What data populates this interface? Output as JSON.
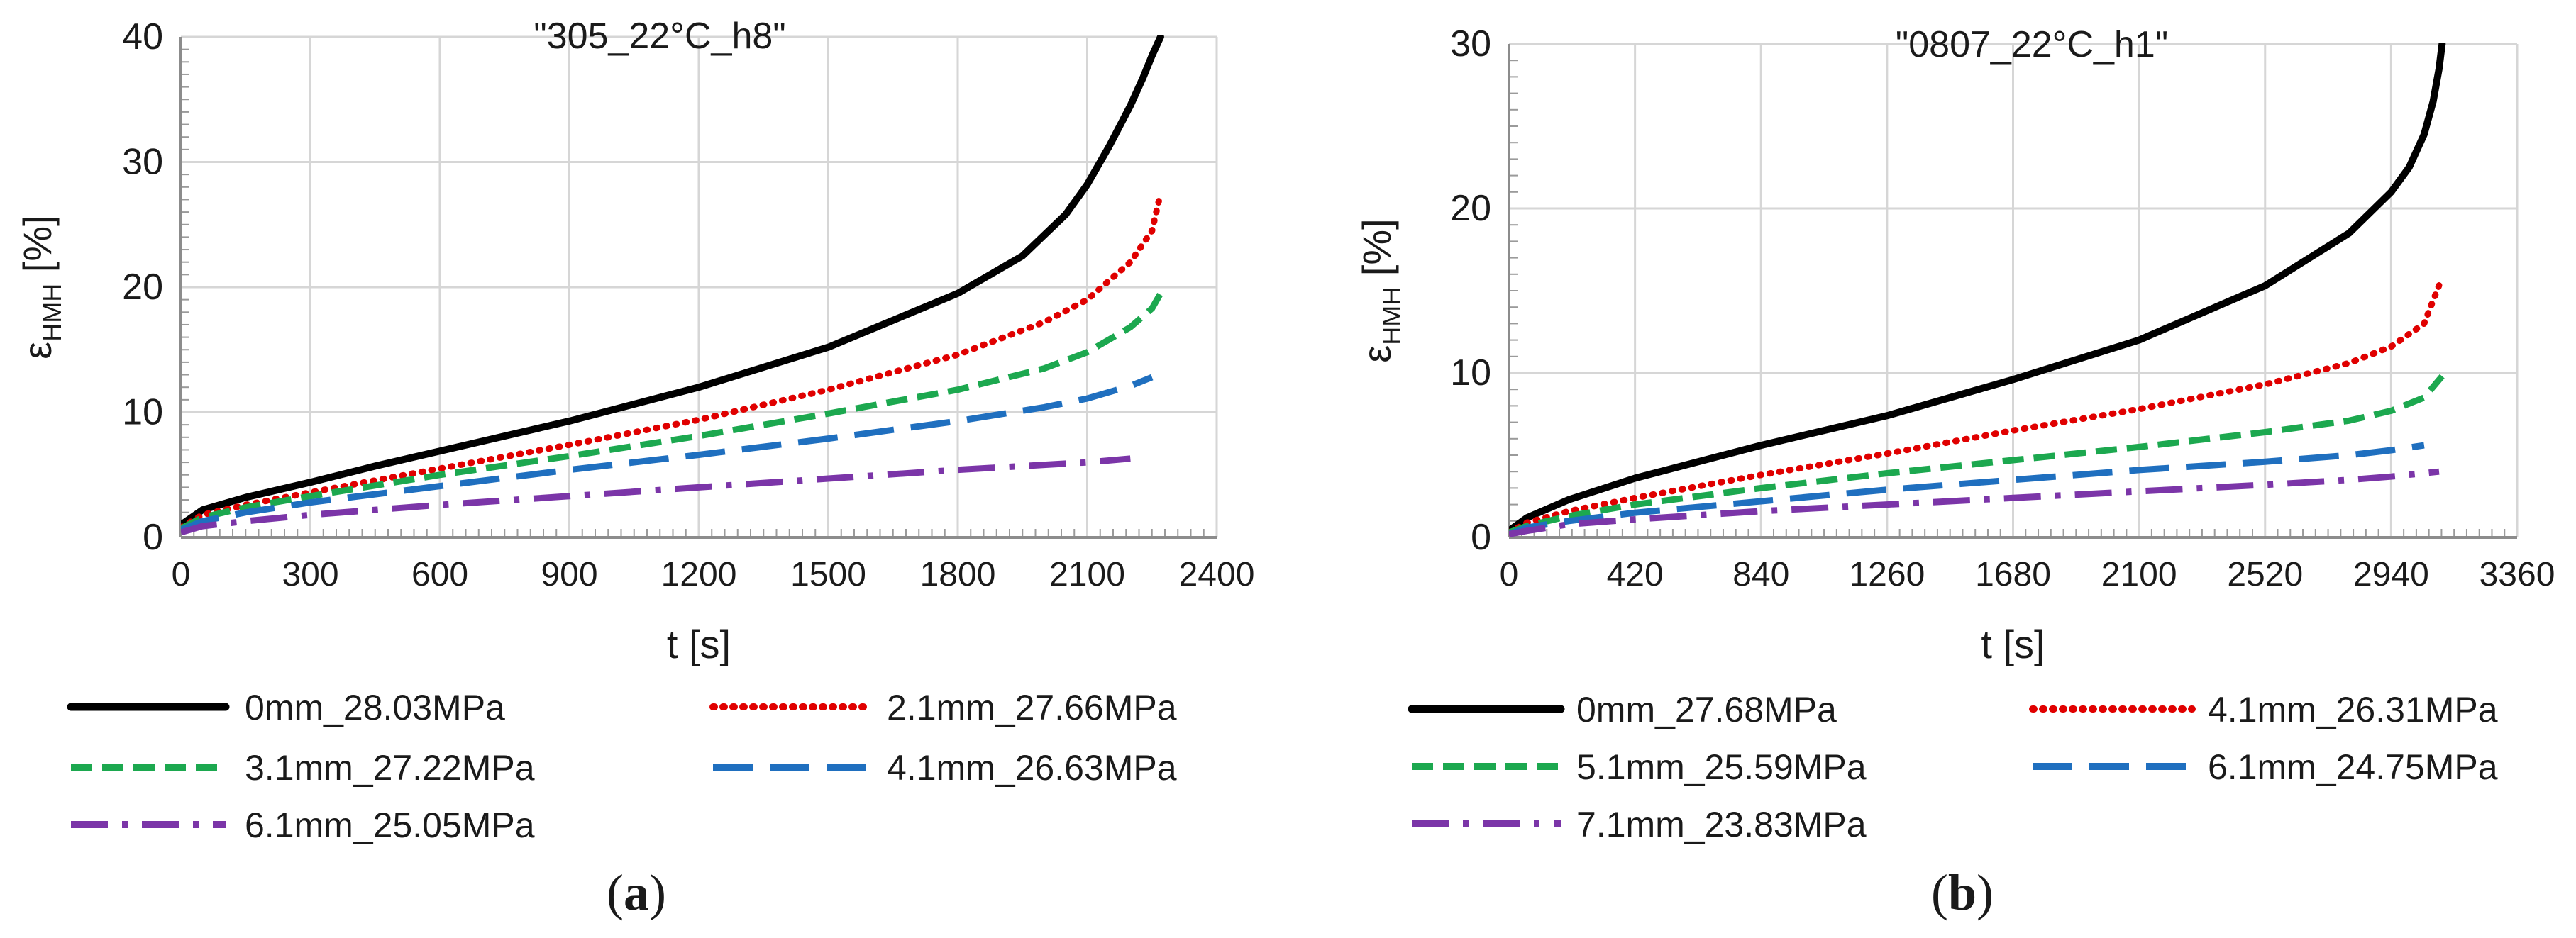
{
  "chart_data": [
    {
      "type": "line",
      "title": "\"305_22°C_h8\"",
      "panel_label": "a",
      "xlabel": "t [s]",
      "ylabel": {
        "main": "ε",
        "sub": "HMH",
        "suffix": " [%]"
      },
      "xlim": [
        0,
        2400
      ],
      "ylim": [
        0,
        40
      ],
      "x_ticks": [
        0,
        300,
        600,
        900,
        1200,
        1500,
        1800,
        2100,
        2400
      ],
      "y_ticks": [
        0,
        10,
        20,
        30,
        40
      ],
      "grid": true,
      "legend_position": "bottom",
      "series": [
        {
          "name": "0mm_28.03MPa",
          "color": "#000000",
          "style": "solid",
          "x": [
            0,
            50,
            150,
            300,
            450,
            600,
            900,
            1200,
            1500,
            1800,
            1950,
            2050,
            2100,
            2150,
            2200,
            2230,
            2250,
            2270
          ],
          "y": [
            1.0,
            2.2,
            3.2,
            4.4,
            5.7,
            6.9,
            9.3,
            12.0,
            15.2,
            19.5,
            22.5,
            25.8,
            28.2,
            31.2,
            34.5,
            36.8,
            38.5,
            40.0
          ]
        },
        {
          "name": "2.1mm_27.66MPa",
          "color": "#e00000",
          "style": "dotted",
          "x": [
            0,
            50,
            150,
            300,
            600,
            900,
            1200,
            1500,
            1800,
            2000,
            2100,
            2200,
            2250,
            2270
          ],
          "y": [
            0.8,
            1.8,
            2.6,
            3.6,
            5.5,
            7.4,
            9.4,
            11.8,
            14.6,
            17.2,
            19.0,
            22.0,
            24.5,
            27.5
          ]
        },
        {
          "name": "3.1mm_27.22MPa",
          "color": "#1ca84f",
          "style": "dash",
          "x": [
            0,
            50,
            150,
            300,
            600,
            900,
            1200,
            1500,
            1800,
            2000,
            2100,
            2200,
            2250,
            2270
          ],
          "y": [
            0.7,
            1.6,
            2.4,
            3.3,
            5.0,
            6.5,
            8.1,
            9.9,
            11.8,
            13.5,
            14.8,
            16.8,
            18.3,
            19.5
          ]
        },
        {
          "name": "4.1mm_26.63MPa",
          "color": "#1f6fbf",
          "style": "longdash",
          "x": [
            0,
            50,
            150,
            300,
            600,
            900,
            1200,
            1500,
            1800,
            2000,
            2100,
            2200,
            2250
          ],
          "y": [
            0.6,
            1.3,
            2.0,
            2.8,
            4.1,
            5.4,
            6.6,
            7.9,
            9.3,
            10.4,
            11.1,
            12.1,
            12.8
          ]
        },
        {
          "name": "6.1mm_25.05MPa",
          "color": "#7b35a8",
          "style": "dashdot",
          "x": [
            0,
            50,
            150,
            300,
            600,
            900,
            1200,
            1500,
            1800,
            2000,
            2100,
            2200
          ],
          "y": [
            0.4,
            0.9,
            1.3,
            1.8,
            2.6,
            3.3,
            4.0,
            4.7,
            5.4,
            5.8,
            6.0,
            6.3
          ]
        }
      ]
    },
    {
      "type": "line",
      "title": "\"0807_22°C_h1\"",
      "panel_label": "b",
      "xlabel": "t [s]",
      "ylabel": {
        "main": "ε",
        "sub": "HMH",
        "suffix": " [%]"
      },
      "xlim": [
        0,
        3360
      ],
      "ylim": [
        0,
        30
      ],
      "x_ticks": [
        0,
        420,
        840,
        1260,
        1680,
        2100,
        2520,
        2940,
        3360
      ],
      "y_ticks": [
        0,
        10,
        20,
        30
      ],
      "grid": true,
      "legend_position": "bottom",
      "series": [
        {
          "name": "0mm_27.68MPa",
          "color": "#000000",
          "style": "solid",
          "x": [
            0,
            60,
            200,
            420,
            840,
            1260,
            1680,
            2100,
            2520,
            2800,
            2940,
            3000,
            3050,
            3080,
            3100,
            3110
          ],
          "y": [
            0.4,
            1.2,
            2.3,
            3.6,
            5.6,
            7.4,
            9.6,
            12.0,
            15.3,
            18.5,
            21.0,
            22.5,
            24.5,
            26.5,
            28.5,
            30.0
          ]
        },
        {
          "name": "4.1mm_26.31MPa",
          "color": "#e00000",
          "style": "dotted",
          "x": [
            0,
            60,
            200,
            420,
            840,
            1260,
            1680,
            2100,
            2520,
            2800,
            2940,
            3050,
            3110
          ],
          "y": [
            0.3,
            0.9,
            1.6,
            2.4,
            3.8,
            5.1,
            6.5,
            7.8,
            9.3,
            10.6,
            11.6,
            13.0,
            15.8
          ]
        },
        {
          "name": "5.1mm_25.59MPa",
          "color": "#1ca84f",
          "style": "dash",
          "x": [
            0,
            60,
            200,
            420,
            840,
            1260,
            1680,
            2100,
            2520,
            2800,
            2940,
            3050,
            3110
          ],
          "y": [
            0.3,
            0.7,
            1.3,
            2.0,
            3.0,
            3.9,
            4.7,
            5.5,
            6.4,
            7.1,
            7.7,
            8.5,
            9.8
          ]
        },
        {
          "name": "6.1mm_24.75MPa",
          "color": "#1f6fbf",
          "style": "longdash",
          "x": [
            0,
            60,
            200,
            420,
            840,
            1260,
            1680,
            2100,
            2520,
            2800,
            2940,
            3050
          ],
          "y": [
            0.2,
            0.6,
            1.0,
            1.5,
            2.2,
            2.9,
            3.5,
            4.1,
            4.6,
            5.0,
            5.3,
            5.6
          ]
        },
        {
          "name": "7.1mm_23.83MPa",
          "color": "#7b35a8",
          "style": "dashdot",
          "x": [
            0,
            60,
            200,
            420,
            840,
            1260,
            1680,
            2100,
            2520,
            2800,
            2940,
            3100
          ],
          "y": [
            0.2,
            0.4,
            0.8,
            1.1,
            1.6,
            2.0,
            2.4,
            2.8,
            3.2,
            3.5,
            3.7,
            4.0
          ]
        }
      ]
    }
  ]
}
